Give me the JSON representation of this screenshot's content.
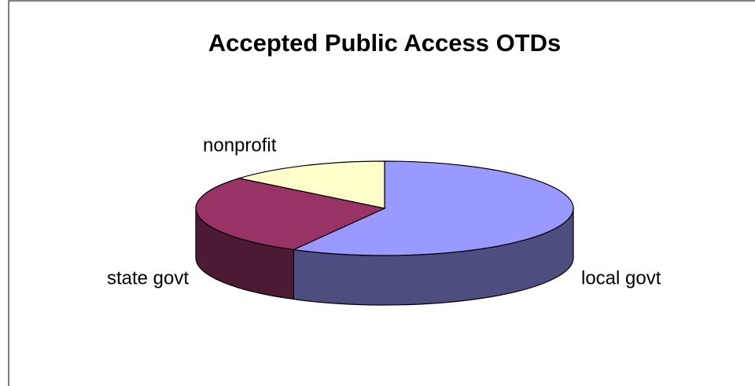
{
  "chart_data": {
    "type": "pie3d",
    "title": "Accepted Public Access OTDs",
    "categories": [
      "local govt",
      "state govt",
      "nonprofit"
    ],
    "values": [
      58,
      28,
      14
    ],
    "colors": [
      "#9999ff",
      "#993366",
      "#ffffcc"
    ]
  }
}
